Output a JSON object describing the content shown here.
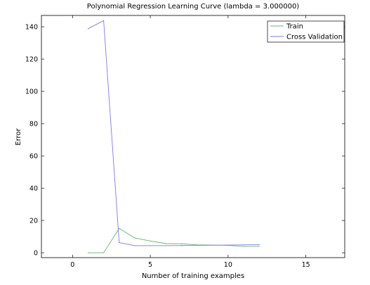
{
  "chart_data": {
    "type": "line",
    "title": "Polynomial Regression Learning Curve (lambda = 3.000000)",
    "xlabel": "Number of training examples",
    "ylabel": "Error",
    "xlim": [
      -2,
      17.5
    ],
    "ylim": [
      -3,
      147
    ],
    "xticks": [
      0,
      5,
      10,
      15
    ],
    "yticks": [
      0,
      20,
      40,
      60,
      80,
      100,
      120,
      140
    ],
    "grid": false,
    "legend_position": "top-right",
    "series": [
      {
        "name": "Train",
        "color": "#6ab46a",
        "x": [
          1,
          2,
          3,
          4,
          5,
          6,
          7,
          8,
          9,
          10,
          11,
          12
        ],
        "y": [
          0,
          0,
          15.1,
          9.2,
          7.3,
          5.7,
          5.6,
          4.9,
          4.8,
          4.6,
          4.0,
          4.0
        ]
      },
      {
        "name": "Cross Validation",
        "color": "#7a7aee",
        "x": [
          1,
          2,
          3,
          4,
          5,
          6,
          7,
          8,
          9,
          10,
          11,
          12
        ],
        "y": [
          138.8,
          143.8,
          6.3,
          4.4,
          4.4,
          4.4,
          4.5,
          4.6,
          4.7,
          4.8,
          4.9,
          5.0
        ]
      }
    ]
  }
}
